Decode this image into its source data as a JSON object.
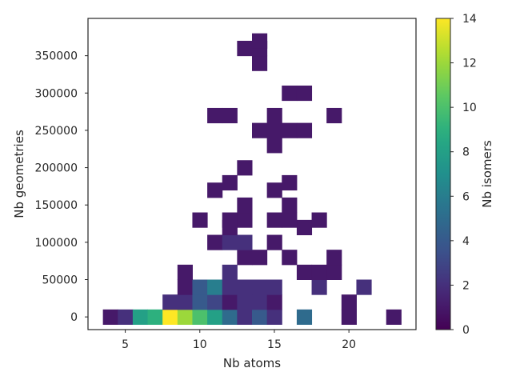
{
  "chart_data": {
    "type": "heatmap",
    "xlabel": "Nb atoms",
    "ylabel": "Nb geometries",
    "colorbar_label": "Nb isomers",
    "colormap": "viridis",
    "color_range": [
      0,
      14
    ],
    "xlim": [
      2.5,
      24.5
    ],
    "ylim": [
      -17000,
      400000
    ],
    "cell_size": {
      "x_atoms": 1,
      "y_geometries": 20000
    },
    "x_ticks": [
      5,
      10,
      15,
      20
    ],
    "y_ticks": [
      0,
      50000,
      100000,
      150000,
      200000,
      250000,
      300000,
      350000
    ],
    "colorbar_ticks": [
      0,
      2,
      4,
      6,
      8,
      10,
      12,
      14
    ],
    "grid": false,
    "cells": [
      {
        "x": 4,
        "y": 0,
        "v": 1
      },
      {
        "x": 5,
        "y": 0,
        "v": 2
      },
      {
        "x": 6,
        "y": 0,
        "v": 8
      },
      {
        "x": 7,
        "y": 0,
        "v": 9
      },
      {
        "x": 8,
        "y": 0,
        "v": 14
      },
      {
        "x": 9,
        "y": 0,
        "v": 12
      },
      {
        "x": 10,
        "y": 0,
        "v": 10
      },
      {
        "x": 11,
        "y": 0,
        "v": 8
      },
      {
        "x": 12,
        "y": 0,
        "v": 5
      },
      {
        "x": 13,
        "y": 0,
        "v": 2
      },
      {
        "x": 14,
        "y": 0,
        "v": 4
      },
      {
        "x": 15,
        "y": 0,
        "v": 2
      },
      {
        "x": 17,
        "y": 0,
        "v": 5
      },
      {
        "x": 20,
        "y": 0,
        "v": 1
      },
      {
        "x": 23,
        "y": 0,
        "v": 1
      },
      {
        "x": 8,
        "y": 20000,
        "v": 2
      },
      {
        "x": 9,
        "y": 20000,
        "v": 2
      },
      {
        "x": 10,
        "y": 20000,
        "v": 4
      },
      {
        "x": 11,
        "y": 20000,
        "v": 3
      },
      {
        "x": 12,
        "y": 20000,
        "v": 1
      },
      {
        "x": 13,
        "y": 20000,
        "v": 2
      },
      {
        "x": 14,
        "y": 20000,
        "v": 2
      },
      {
        "x": 15,
        "y": 20000,
        "v": 1
      },
      {
        "x": 20,
        "y": 20000,
        "v": 1
      },
      {
        "x": 9,
        "y": 40000,
        "v": 1
      },
      {
        "x": 10,
        "y": 40000,
        "v": 4
      },
      {
        "x": 11,
        "y": 40000,
        "v": 6
      },
      {
        "x": 12,
        "y": 40000,
        "v": 2
      },
      {
        "x": 13,
        "y": 40000,
        "v": 2
      },
      {
        "x": 14,
        "y": 40000,
        "v": 2
      },
      {
        "x": 15,
        "y": 40000,
        "v": 2
      },
      {
        "x": 18,
        "y": 40000,
        "v": 2
      },
      {
        "x": 21,
        "y": 40000,
        "v": 2
      },
      {
        "x": 9,
        "y": 60000,
        "v": 1
      },
      {
        "x": 12,
        "y": 60000,
        "v": 2
      },
      {
        "x": 17,
        "y": 60000,
        "v": 1
      },
      {
        "x": 18,
        "y": 60000,
        "v": 1
      },
      {
        "x": 19,
        "y": 60000,
        "v": 1
      },
      {
        "x": 13,
        "y": 80000,
        "v": 1
      },
      {
        "x": 14,
        "y": 80000,
        "v": 1
      },
      {
        "x": 16,
        "y": 80000,
        "v": 1
      },
      {
        "x": 19,
        "y": 80000,
        "v": 1
      },
      {
        "x": 11,
        "y": 100000,
        "v": 1
      },
      {
        "x": 12,
        "y": 100000,
        "v": 2
      },
      {
        "x": 13,
        "y": 100000,
        "v": 2
      },
      {
        "x": 15,
        "y": 100000,
        "v": 1
      },
      {
        "x": 12,
        "y": 120000,
        "v": 1
      },
      {
        "x": 17,
        "y": 120000,
        "v": 1
      },
      {
        "x": 10,
        "y": 130000,
        "v": 1
      },
      {
        "x": 12,
        "y": 130000,
        "v": 1
      },
      {
        "x": 13,
        "y": 130000,
        "v": 1
      },
      {
        "x": 15,
        "y": 130000,
        "v": 1
      },
      {
        "x": 16,
        "y": 130000,
        "v": 1
      },
      {
        "x": 18,
        "y": 130000,
        "v": 1
      },
      {
        "x": 13,
        "y": 150000,
        "v": 1
      },
      {
        "x": 16,
        "y": 150000,
        "v": 1
      },
      {
        "x": 11,
        "y": 170000,
        "v": 1
      },
      {
        "x": 15,
        "y": 170000,
        "v": 1
      },
      {
        "x": 12,
        "y": 180000,
        "v": 1
      },
      {
        "x": 16,
        "y": 180000,
        "v": 1
      },
      {
        "x": 13,
        "y": 200000,
        "v": 1
      },
      {
        "x": 15,
        "y": 230000,
        "v": 1
      },
      {
        "x": 14,
        "y": 250000,
        "v": 1
      },
      {
        "x": 15,
        "y": 250000,
        "v": 1
      },
      {
        "x": 16,
        "y": 250000,
        "v": 1
      },
      {
        "x": 17,
        "y": 250000,
        "v": 1
      },
      {
        "x": 11,
        "y": 270000,
        "v": 1
      },
      {
        "x": 12,
        "y": 270000,
        "v": 1
      },
      {
        "x": 15,
        "y": 270000,
        "v": 1
      },
      {
        "x": 19,
        "y": 270000,
        "v": 1
      },
      {
        "x": 16,
        "y": 300000,
        "v": 1
      },
      {
        "x": 17,
        "y": 300000,
        "v": 1
      },
      {
        "x": 14,
        "y": 340000,
        "v": 1
      },
      {
        "x": 13,
        "y": 360000,
        "v": 1
      },
      {
        "x": 14,
        "y": 360000,
        "v": 1
      },
      {
        "x": 14,
        "y": 370000,
        "v": 1
      }
    ]
  }
}
